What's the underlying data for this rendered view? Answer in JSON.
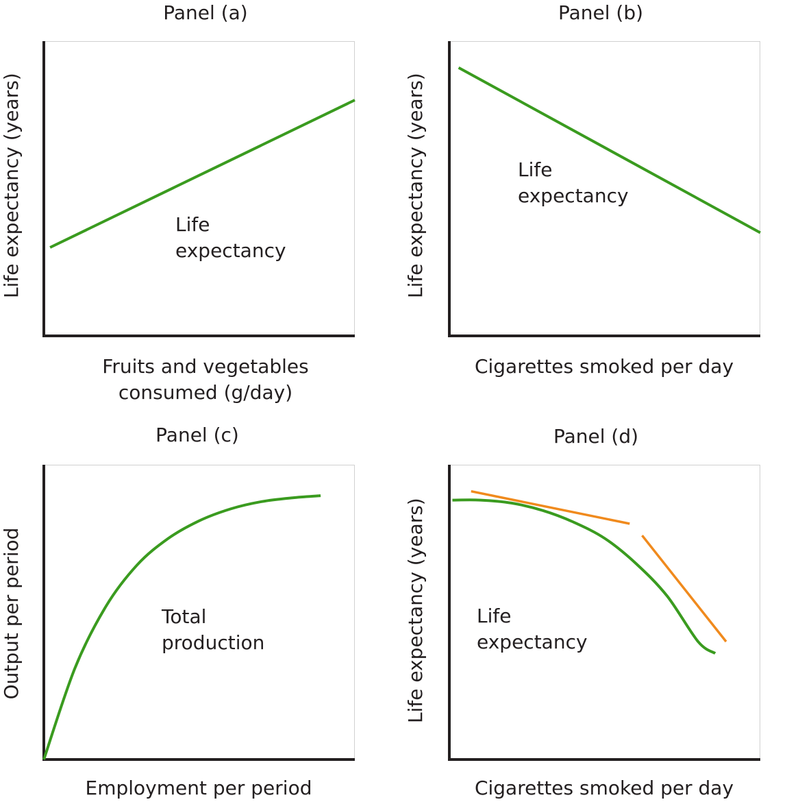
{
  "panels": [
    {
      "title": "Panel (a)",
      "xlabel_lines": [
        "Fruits and vegetables",
        "consumed (g/day)"
      ],
      "ylabel": "Life expectancy (years)",
      "curve_label_lines": [
        "Life",
        "expectancy"
      ]
    },
    {
      "title": "Panel (b)",
      "xlabel_lines": [
        "Cigarettes smoked per day"
      ],
      "ylabel": "Life expectancy (years)",
      "curve_label_lines": [
        "Life",
        "expectancy"
      ]
    },
    {
      "title": "Panel (c)",
      "xlabel_lines": [
        "Employment per period"
      ],
      "ylabel": "Output per period",
      "curve_label_lines": [
        "Total",
        "production"
      ]
    },
    {
      "title": "Panel (d)",
      "xlabel_lines": [
        "Cigarettes smoked per day"
      ],
      "ylabel": "Life expectancy (years)",
      "curve_label_lines": [
        "Life",
        "expectancy"
      ]
    }
  ],
  "colors": {
    "curve": "#3a9b1f",
    "tangent": "#f08a1d",
    "axis": "#231f20"
  },
  "chart_data": [
    {
      "type": "line",
      "title": "Panel (a)",
      "xlabel": "Fruits and vegetables consumed (g/day)",
      "ylabel": "Life expectancy (years)",
      "xlim": [
        0,
        100
      ],
      "ylim": [
        0,
        100
      ],
      "series": [
        {
          "name": "Life expectancy",
          "x": [
            2,
            100
          ],
          "y": [
            30,
            80
          ]
        }
      ]
    },
    {
      "type": "line",
      "title": "Panel (b)",
      "xlabel": "Cigarettes smoked per day",
      "ylabel": "Life expectancy (years)",
      "xlim": [
        0,
        100
      ],
      "ylim": [
        0,
        100
      ],
      "series": [
        {
          "name": "Life expectancy",
          "x": [
            3,
            100
          ],
          "y": [
            91,
            35
          ]
        }
      ]
    },
    {
      "type": "line",
      "title": "Panel (c)",
      "xlabel": "Employment per period",
      "ylabel": "Output per period",
      "xlim": [
        0,
        100
      ],
      "ylim": [
        0,
        100
      ],
      "series": [
        {
          "name": "Total production",
          "x": [
            0,
            10,
            20,
            30,
            40,
            50,
            60,
            70,
            80,
            89
          ],
          "y": [
            0,
            31,
            52,
            66,
            75,
            81,
            85,
            87.5,
            88.8,
            89.5
          ]
        }
      ]
    },
    {
      "type": "line",
      "title": "Panel (d)",
      "xlabel": "Cigarettes smoked per day",
      "ylabel": "Life expectancy (years)",
      "xlim": [
        0,
        100
      ],
      "ylim": [
        0,
        100
      ],
      "series": [
        {
          "name": "Life expectancy",
          "x": [
            1,
            10,
            20,
            30,
            40,
            50,
            60,
            70,
            80,
            85.5
          ],
          "y": [
            88,
            88,
            87,
            84.5,
            80.5,
            75,
            66.5,
            55.5,
            40,
            36
          ]
        },
        {
          "name": "",
          "x": [
            7,
            58
          ],
          "y": [
            91,
            80
          ]
        },
        {
          "name": "",
          "x": [
            62,
            89
          ],
          "y": [
            76,
            40
          ]
        }
      ]
    }
  ]
}
